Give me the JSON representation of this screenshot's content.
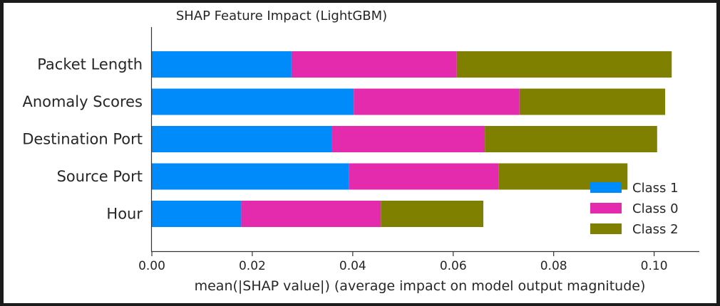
{
  "chart_data": {
    "type": "bar",
    "orientation": "horizontal",
    "stacked": true,
    "title": "SHAP Feature Impact (LightGBM)",
    "xlabel": "mean(|SHAP value|) (average impact on model output magnitude)",
    "ylabel": "",
    "categories": [
      "Packet Length",
      "Anomaly Scores",
      "Destination Port",
      "Source Port",
      "Hour"
    ],
    "xlim": [
      0,
      0.109
    ],
    "xticks": [
      "0.00",
      "0.02",
      "0.04",
      "0.06",
      "0.08",
      "0.10"
    ],
    "xtick_values": [
      0.0,
      0.02,
      0.04,
      0.06,
      0.08,
      0.1
    ],
    "legend_position": "lower-right",
    "grid": false,
    "series": [
      {
        "name": "Class 1",
        "color": "#008bfb",
        "values": [
          0.0278,
          0.0402,
          0.0359,
          0.0392,
          0.0178
        ]
      },
      {
        "name": "Class 0",
        "color": "#e52bad",
        "values": [
          0.0329,
          0.033,
          0.0304,
          0.0298,
          0.0278
        ]
      },
      {
        "name": "Class 2",
        "color": "#808000",
        "values": [
          0.0428,
          0.029,
          0.0343,
          0.0257,
          0.0204
        ]
      }
    ],
    "legend_order": [
      "Class 1",
      "Class 0",
      "Class 2"
    ]
  }
}
